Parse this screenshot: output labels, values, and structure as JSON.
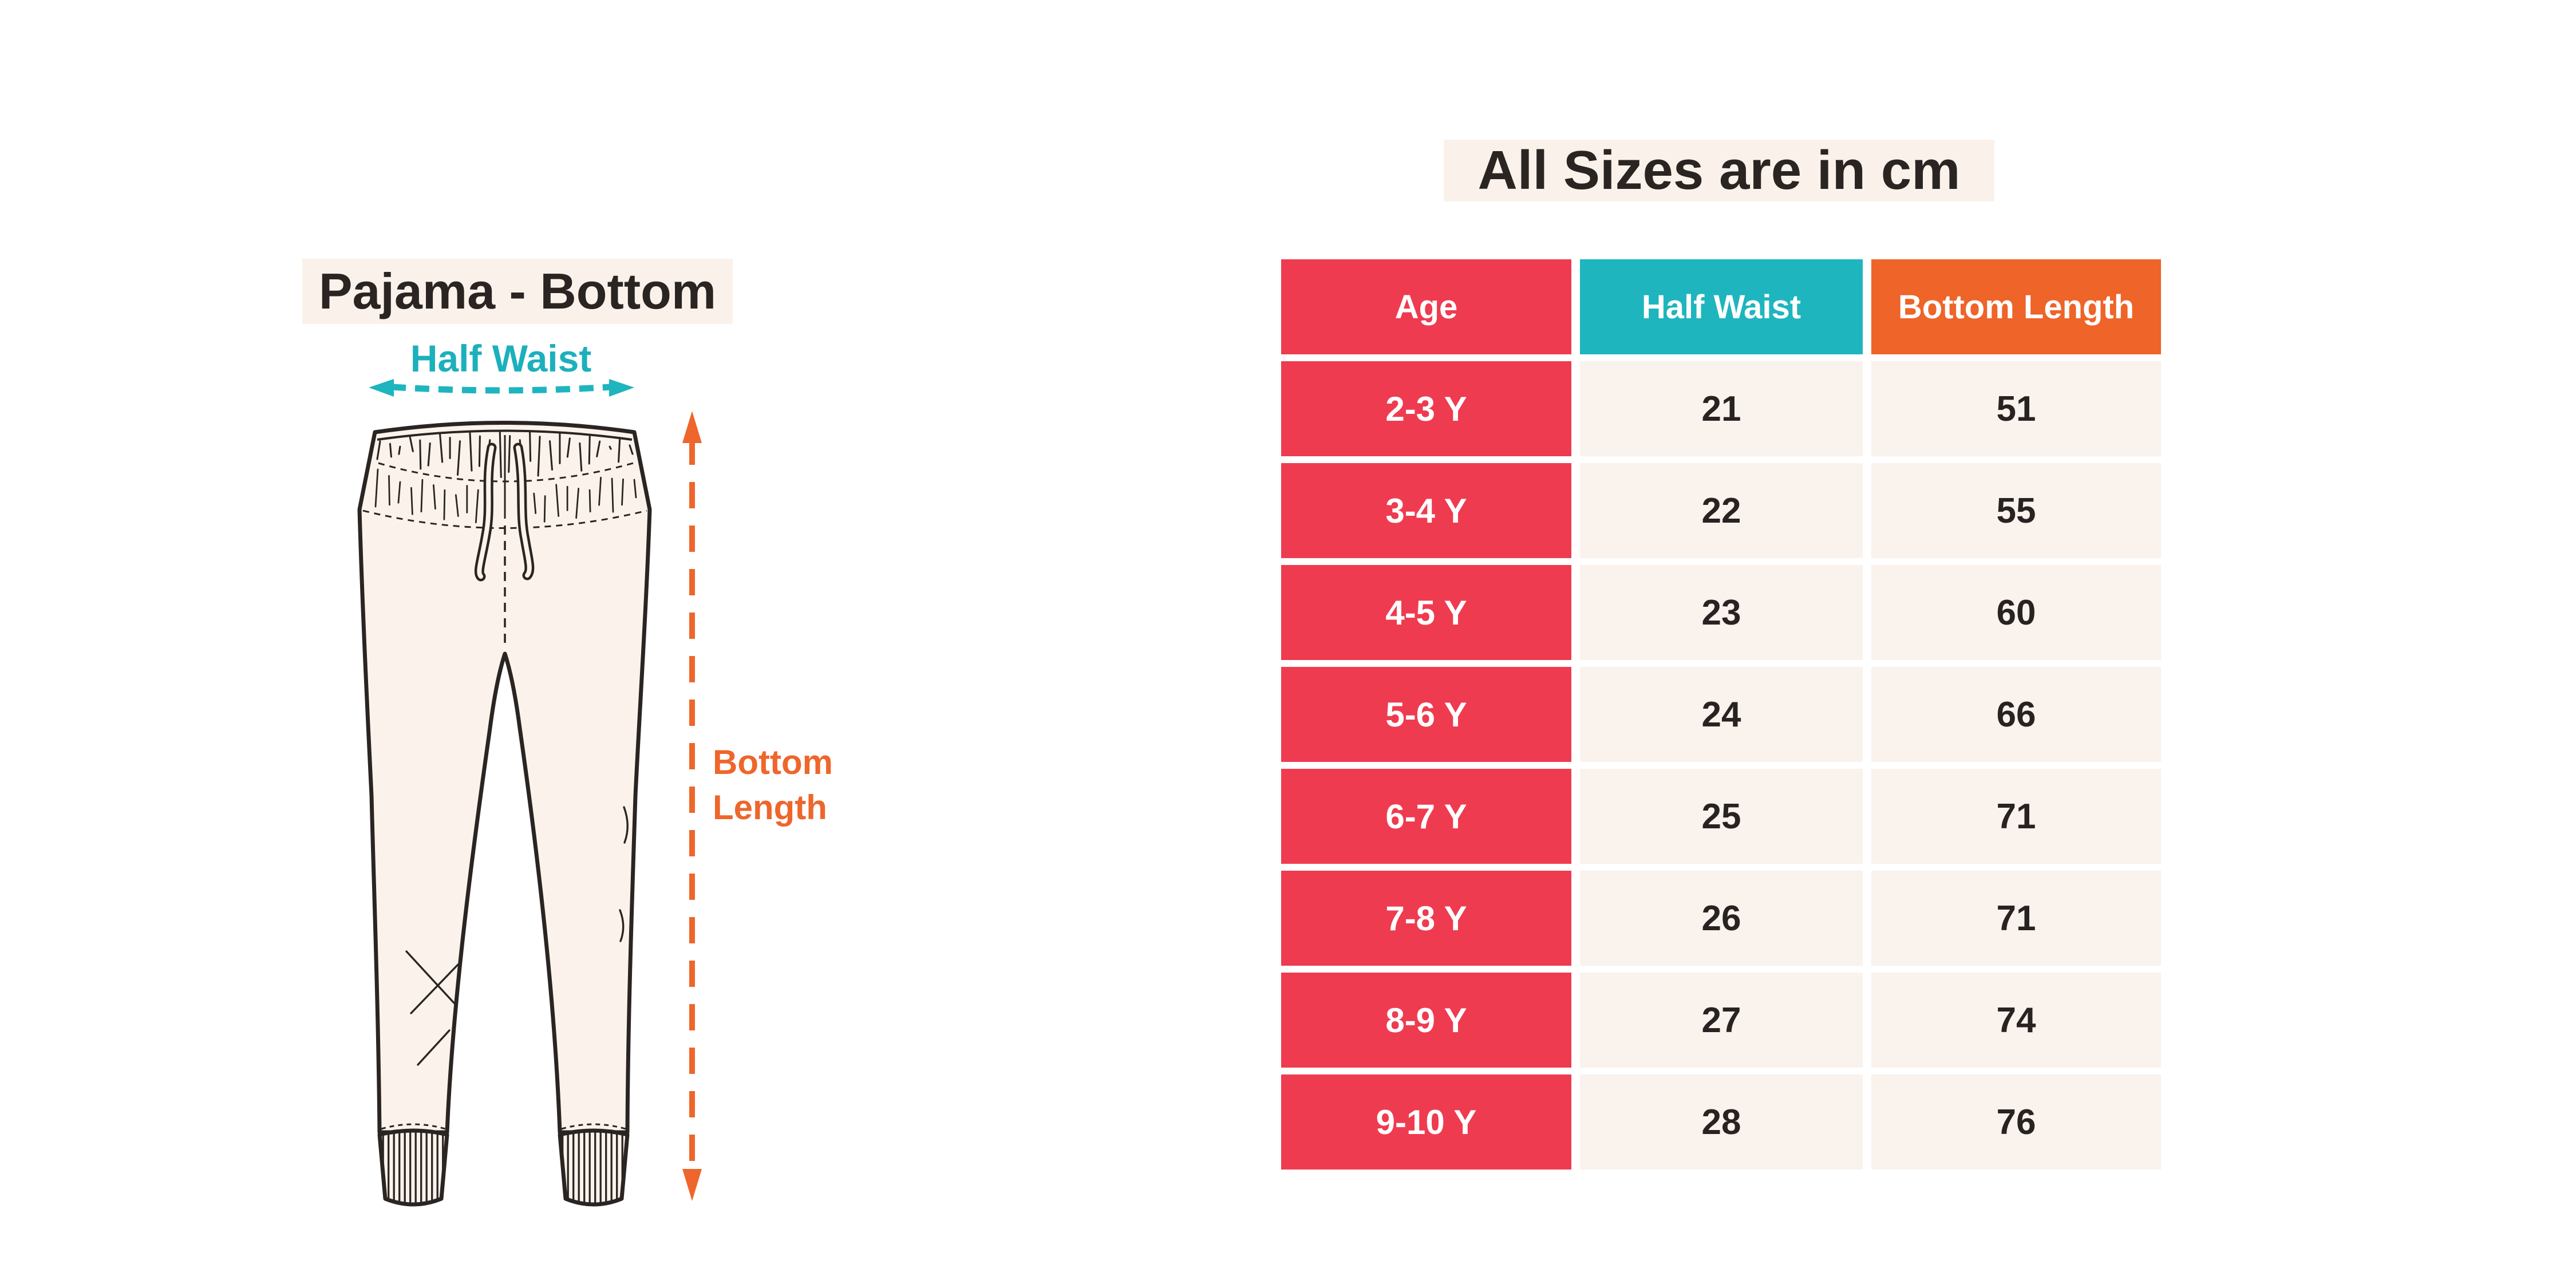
{
  "title": "All Sizes are in cm",
  "diagram": {
    "title": "Pajama - Bottom",
    "half_waist_label": "Half Waist",
    "bottom_length_line1": "Bottom",
    "bottom_length_line2": "Length"
  },
  "colors": {
    "age_red": "#ef3b50",
    "waist_teal": "#1eb5bf",
    "length_orange": "#ee6429",
    "cell_cream": "#faf2ec",
    "highlight_cream": "#faf2ea",
    "ink_dark": "#2a2522",
    "label_teal": "#1cb0bc",
    "label_orange": "#ee662c"
  },
  "chart_data": {
    "type": "table",
    "title": "All Sizes are in cm",
    "units": "cm",
    "columns": [
      "Age",
      "Half Waist",
      "Bottom Length"
    ],
    "rows": [
      [
        "2-3 Y",
        "21",
        "51"
      ],
      [
        "3-4 Y",
        "22",
        "55"
      ],
      [
        "4-5 Y",
        "23",
        "60"
      ],
      [
        "5-6 Y",
        "24",
        "66"
      ],
      [
        "6-7 Y",
        "25",
        "71"
      ],
      [
        "7-8 Y",
        "26",
        "71"
      ],
      [
        "8-9 Y",
        "27",
        "74"
      ],
      [
        "9-10 Y",
        "28",
        "76"
      ]
    ]
  }
}
